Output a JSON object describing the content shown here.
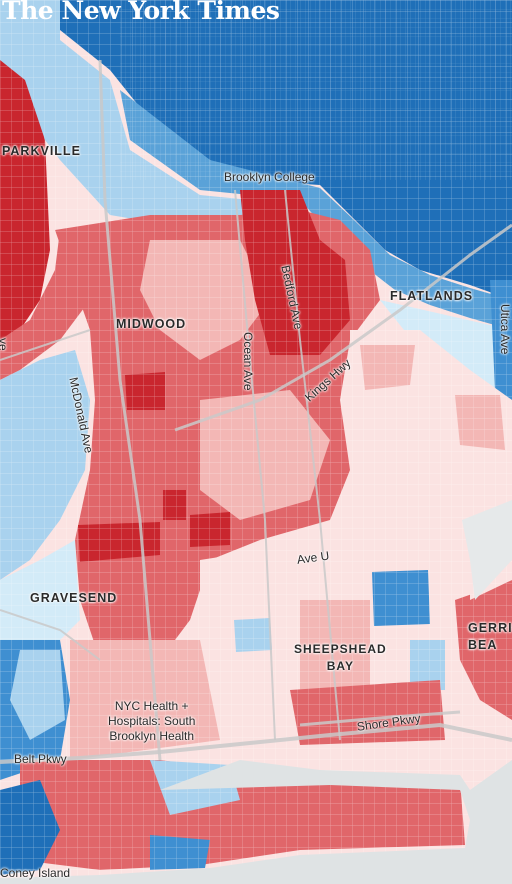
{
  "logo": "The New York Times",
  "neighborhoods": {
    "parkville": "PARKVILLE",
    "midwood": "MIDWOOD",
    "flatlands": "FLATLANDS",
    "gravesend": "GRAVESEND",
    "sheepshead_bay": "SHEEPSHEAD\nBAY",
    "gerritsen_beach": "GERRI\nBEA"
  },
  "streets": {
    "bedford_ave": "Bedford Ave",
    "ocean_ave": "Ocean Ave",
    "kings_hwy": "Kings Hwy",
    "mcdonald_ave": "McDonald Ave",
    "utica_ave": "Utica Ave",
    "ave_u": "Ave U",
    "shore_pkwy": "Shore Pkwy",
    "belt_pkwy": "Belt Pkwy",
    "ave_partial": "ve"
  },
  "places": {
    "brooklyn_college": "Brooklyn College",
    "hospital": "NYC Health +\nHospitals: South\nBrooklyn Health",
    "coney_island": "Coney Island"
  },
  "colors": {
    "dark_blue": "#1f6fb8",
    "mid_blue": "#3f8fd1",
    "light_blue": "#a9d2ee",
    "pale_blue": "#d3ebf8",
    "dark_red": "#c9262e",
    "mid_red": "#e0666a",
    "light_red": "#f3b7b5",
    "pale_red": "#fbe3e2",
    "water": "#dfe3e4"
  }
}
